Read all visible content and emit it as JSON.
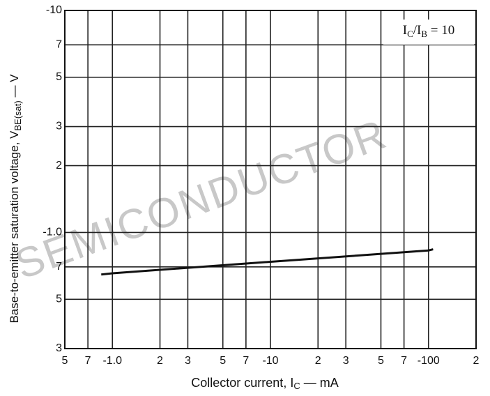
{
  "chart_data": {
    "type": "line",
    "log_scale": true,
    "grid": true,
    "x_label": [
      "Collector current, I",
      "C",
      " — mA"
    ],
    "y_label": [
      "Base-to-emitter saturation voltage, V",
      "BE(sat)",
      " — V"
    ],
    "annotation": [
      "I",
      "C",
      "/I",
      "B",
      " = 10"
    ],
    "watermark": "SEMICONDUCTOR",
    "xlim": [
      -0.5,
      -200
    ],
    "ylim": [
      -0.3,
      -10
    ],
    "xticks": [
      {
        "value": -0.5,
        "label": "5"
      },
      {
        "value": -0.7,
        "label": "7"
      },
      {
        "value": -1,
        "label": "-1.0"
      },
      {
        "value": -2,
        "label": "2"
      },
      {
        "value": -3,
        "label": "3"
      },
      {
        "value": -5,
        "label": "5"
      },
      {
        "value": -7,
        "label": "7"
      },
      -10,
      {
        "value": -20,
        "label": "2"
      },
      {
        "value": -30,
        "label": "3"
      },
      {
        "value": -50,
        "label": "5"
      },
      {
        "value": -70,
        "label": "7"
      },
      -100,
      {
        "value": -200,
        "label": "2"
      }
    ],
    "yticks": [
      {
        "value": -0.3,
        "label": "3"
      },
      {
        "value": -0.5,
        "label": "5"
      },
      {
        "value": -0.7,
        "label": "7"
      },
      {
        "value": -1,
        "label": "-1.0"
      },
      {
        "value": -2,
        "label": "2"
      },
      {
        "value": -3,
        "label": "3"
      },
      {
        "value": -5,
        "label": "5"
      },
      {
        "value": -7,
        "label": "7"
      },
      -10
    ],
    "series": [
      {
        "color": "#111111",
        "x": [
          -0.85,
          -1,
          -10,
          -100,
          -107
        ],
        "values": [
          -0.647,
          -0.655,
          -0.738,
          -0.83,
          -0.84
        ]
      }
    ]
  }
}
